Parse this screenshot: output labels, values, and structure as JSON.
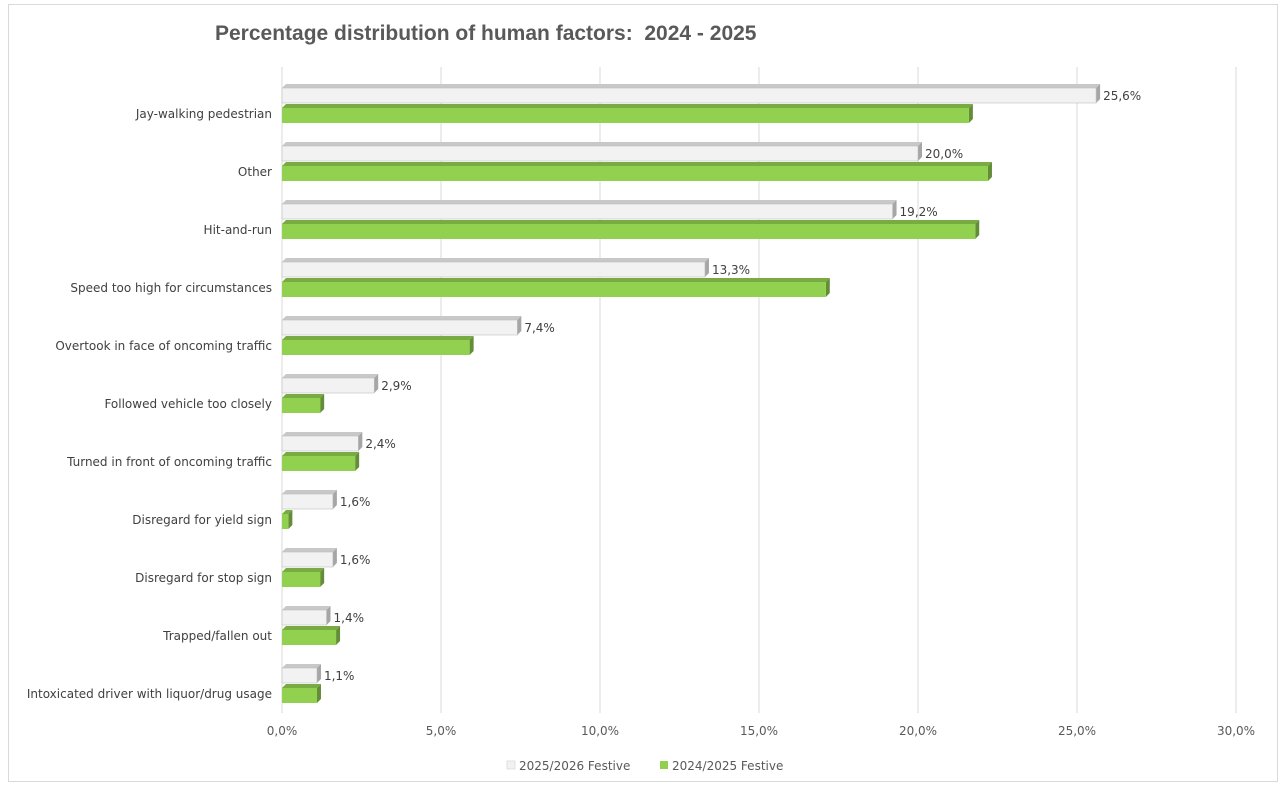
{
  "chart_data": {
    "type": "bar",
    "orientation": "horizontal",
    "title": "Percentage distribution of human factors:  2024 - 2025",
    "categories": [
      "Jay-walking pedestrian",
      "Other",
      "Hit-and-run",
      "Speed too high for circumstances",
      "Overtook in face of oncoming traffic",
      "Followed vehicle too closely",
      "Turned in front of oncoming traffic",
      "Disregard for yield sign",
      "Disregard for stop sign",
      "Trapped/fallen out",
      "Intoxicated driver with liquor/drug usage"
    ],
    "series": [
      {
        "name": "2025/2026 Festive",
        "color": "#f2f2f2",
        "values": [
          25.6,
          20.0,
          19.2,
          13.3,
          7.4,
          2.9,
          2.4,
          1.6,
          1.6,
          1.4,
          1.1
        ],
        "labels": [
          "25,6%",
          "20,0%",
          "19,2%",
          "13,3%",
          "7,4%",
          "2,9%",
          "2,4%",
          "1,6%",
          "1,6%",
          "1,4%",
          "1,1%"
        ]
      },
      {
        "name": "2024/2025 Festive",
        "color": "#92d050",
        "values": [
          21.6,
          22.2,
          21.8,
          17.1,
          5.9,
          1.2,
          2.3,
          0.2,
          1.2,
          1.7,
          1.1
        ]
      }
    ],
    "xlim": [
      0,
      30
    ],
    "x_ticks": [
      "0,0%",
      "5,0%",
      "10,0%",
      "15,0%",
      "20,0%",
      "25,0%",
      "30,0%"
    ],
    "x_tick_values": [
      0,
      5,
      10,
      15,
      20,
      25,
      30
    ],
    "grid": true,
    "legend_position": "bottom",
    "bar_style": "3d"
  }
}
